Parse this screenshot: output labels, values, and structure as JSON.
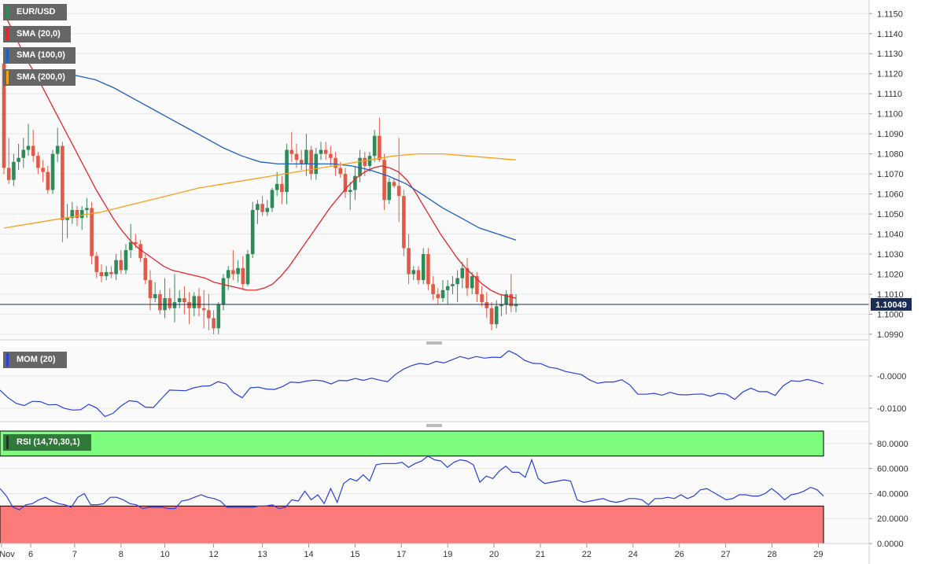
{
  "chart_data": [
    {
      "type": "candlestick",
      "title": "EUR/USD",
      "indicators": [
        {
          "name": "SMA (20,0)",
          "color": "#e8242b"
        },
        {
          "name": "SMA (100,0)",
          "color": "#1f5fbf"
        },
        {
          "name": "SMA (200,0)",
          "color": "#f5a21b"
        }
      ],
      "ylim": [
        1.0988,
        1.1156
      ],
      "yticks": [
        "1.1150",
        "1.1140",
        "1.1130",
        "1.1120",
        "1.1110",
        "1.1100",
        "1.1090",
        "1.1080",
        "1.1070",
        "1.1060",
        "1.1050",
        "1.1040",
        "1.1030",
        "1.1020",
        "1.1010",
        "1.1000",
        "1.0990"
      ],
      "last_price": "1.10049",
      "last_price_value": 1.10049,
      "up_color": "#2e8b57",
      "down_color": "#e05a47",
      "candles": [
        [
          1.1125,
          1.1128,
          1.107,
          1.1073
        ],
        [
          1.1073,
          1.1088,
          1.1065,
          1.1067
        ],
        [
          1.1067,
          1.108,
          1.1064,
          1.1076
        ],
        [
          1.1076,
          1.1085,
          1.1072,
          1.1078
        ],
        [
          1.1078,
          1.1088,
          1.1073,
          1.1082
        ],
        [
          1.1082,
          1.1095,
          1.1079,
          1.1084
        ],
        [
          1.1084,
          1.1092,
          1.1076,
          1.1079
        ],
        [
          1.1079,
          1.1081,
          1.107,
          1.1073
        ],
        [
          1.1073,
          1.1077,
          1.1066,
          1.1071
        ],
        [
          1.1071,
          1.1074,
          1.106,
          1.1062
        ],
        [
          1.1062,
          1.1082,
          1.106,
          1.108
        ],
        [
          1.108,
          1.1093,
          1.1076,
          1.1084
        ],
        [
          1.1084,
          1.1086,
          1.1036,
          1.1047
        ],
        [
          1.1047,
          1.1055,
          1.1038,
          1.1048
        ],
        [
          1.1048,
          1.1056,
          1.1045,
          1.1052
        ],
        [
          1.1052,
          1.1054,
          1.1044,
          1.1048
        ],
        [
          1.1048,
          1.1054,
          1.1042,
          1.1052
        ],
        [
          1.1052,
          1.1058,
          1.1048,
          1.1053
        ],
        [
          1.1053,
          1.1056,
          1.1025,
          1.1029
        ],
        [
          1.1029,
          1.1031,
          1.1018,
          1.1021
        ],
        [
          1.1021,
          1.1025,
          1.1016,
          1.1019
        ],
        [
          1.1019,
          1.1024,
          1.1017,
          1.1021
        ],
        [
          1.1021,
          1.1024,
          1.1018,
          1.102
        ],
        [
          1.102,
          1.103,
          1.1017,
          1.1027
        ],
        [
          1.1027,
          1.1032,
          1.102,
          1.1022
        ],
        [
          1.1022,
          1.1035,
          1.102,
          1.1032
        ],
        [
          1.1032,
          1.1045,
          1.1028,
          1.1036
        ],
        [
          1.1036,
          1.104,
          1.1033,
          1.1035
        ],
        [
          1.1035,
          1.1037,
          1.1026,
          1.1028
        ],
        [
          1.1028,
          1.103,
          1.1015,
          1.1017
        ],
        [
          1.1017,
          1.1022,
          1.1002,
          1.1008
        ],
        [
          1.1008,
          1.1016,
          1.1006,
          1.101
        ],
        [
          1.101,
          1.1012,
          1.1,
          1.1002
        ],
        [
          1.1002,
          1.1018,
          1.0998,
          1.1008
        ],
        [
          1.1008,
          1.1013,
          1.1002,
          1.1003
        ],
        [
          1.1003,
          1.102,
          1.0996,
          1.1006
        ],
        [
          1.1006,
          1.1012,
          1.1003,
          1.1008
        ],
        [
          1.1008,
          1.1014,
          1.1,
          1.1006
        ],
        [
          1.1006,
          1.1011,
          1.0995,
          1.1003
        ],
        [
          1.1003,
          1.1011,
          1.0999,
          1.1009
        ],
        [
          1.1009,
          1.1013,
          1.0999,
          1.1003
        ],
        [
          1.1003,
          1.1012,
          1.0993,
          1.1002
        ],
        [
          1.1002,
          1.101,
          1.0992,
          1.0998
        ],
        [
          1.0998,
          1.1002,
          1.099,
          1.0993
        ],
        [
          1.0993,
          1.1006,
          1.099,
          1.1005
        ],
        [
          1.1005,
          1.102,
          1.1002,
          1.1018
        ],
        [
          1.1018,
          1.1024,
          1.1012,
          1.1022
        ],
        [
          1.1022,
          1.1032,
          1.1017,
          1.102
        ],
        [
          1.102,
          1.1027,
          1.1016,
          1.1023
        ],
        [
          1.1023,
          1.1029,
          1.1012,
          1.1015
        ],
        [
          1.1015,
          1.1032,
          1.1014,
          1.103
        ],
        [
          1.103,
          1.1056,
          1.1028,
          1.1052
        ],
        [
          1.1052,
          1.1057,
          1.1045,
          1.1055
        ],
        [
          1.1055,
          1.1059,
          1.1049,
          1.1051
        ],
        [
          1.1051,
          1.1057,
          1.1049,
          1.1053
        ],
        [
          1.1053,
          1.1063,
          1.1051,
          1.1062
        ],
        [
          1.1062,
          1.1071,
          1.1059,
          1.1065
        ],
        [
          1.1065,
          1.1069,
          1.1055,
          1.1061
        ],
        [
          1.1061,
          1.1085,
          1.1055,
          1.1082
        ],
        [
          1.1082,
          1.1091,
          1.1076,
          1.108
        ],
        [
          1.108,
          1.1085,
          1.1073,
          1.1077
        ],
        [
          1.1077,
          1.1082,
          1.1072,
          1.1075
        ],
        [
          1.1075,
          1.109,
          1.1069,
          1.1082
        ],
        [
          1.1082,
          1.1084,
          1.1067,
          1.107
        ],
        [
          1.107,
          1.1083,
          1.1067,
          1.108
        ],
        [
          1.108,
          1.1086,
          1.1077,
          1.1082
        ],
        [
          1.1082,
          1.1086,
          1.1077,
          1.108
        ],
        [
          1.108,
          1.1084,
          1.1074,
          1.1078
        ],
        [
          1.1078,
          1.1081,
          1.1069,
          1.1073
        ],
        [
          1.1073,
          1.1076,
          1.1068,
          1.107
        ],
        [
          1.107,
          1.1073,
          1.1058,
          1.1061
        ],
        [
          1.1061,
          1.1066,
          1.1052,
          1.1062
        ],
        [
          1.1062,
          1.1074,
          1.1057,
          1.1069
        ],
        [
          1.1069,
          1.1082,
          1.1066,
          1.1078
        ],
        [
          1.1078,
          1.1081,
          1.1069,
          1.1074
        ],
        [
          1.1074,
          1.1081,
          1.1071,
          1.1079
        ],
        [
          1.1079,
          1.1092,
          1.1076,
          1.1089
        ],
        [
          1.1089,
          1.1098,
          1.1076,
          1.1077
        ],
        [
          1.1077,
          1.108,
          1.1052,
          1.1057
        ],
        [
          1.1057,
          1.1068,
          1.1055,
          1.1066
        ],
        [
          1.1066,
          1.1068,
          1.1063,
          1.1064
        ],
        [
          1.1064,
          1.1088,
          1.1046,
          1.1059
        ],
        [
          1.1059,
          1.1062,
          1.1029,
          1.1033
        ],
        [
          1.1033,
          1.104,
          1.1015,
          1.102
        ],
        [
          1.102,
          1.1024,
          1.1017,
          1.1022
        ],
        [
          1.1022,
          1.1024,
          1.1015,
          1.1017
        ],
        [
          1.1017,
          1.1033,
          1.1015,
          1.103
        ],
        [
          1.103,
          1.1033,
          1.1012,
          1.1015
        ],
        [
          1.1015,
          1.1019,
          1.1007,
          1.101
        ],
        [
          1.101,
          1.1013,
          1.1005,
          1.1008
        ],
        [
          1.1008,
          1.1017,
          1.1006,
          1.1012
        ],
        [
          1.1012,
          1.1017,
          1.1005,
          1.1014
        ],
        [
          1.1014,
          1.1019,
          1.101,
          1.1015
        ],
        [
          1.1015,
          1.1022,
          1.1006,
          1.1018
        ],
        [
          1.1018,
          1.1026,
          1.1013,
          1.1023
        ],
        [
          1.1023,
          1.1028,
          1.1009,
          1.1013
        ],
        [
          1.1013,
          1.1021,
          1.101,
          1.1019
        ],
        [
          1.1019,
          1.1021,
          1.1006,
          1.101
        ],
        [
          1.101,
          1.1014,
          1.1004,
          1.1006
        ],
        [
          1.1006,
          1.1011,
          1.0998,
          1.1003
        ],
        [
          1.1003,
          1.1006,
          1.0992,
          1.0995
        ],
        [
          1.0995,
          1.1007,
          1.0993,
          1.1004
        ],
        [
          1.1004,
          1.101,
          1.0999,
          1.1005
        ],
        [
          1.1005,
          1.1012,
          1.1,
          1.101
        ],
        [
          1.101,
          1.102,
          1.1001,
          1.1004
        ],
        [
          1.1004,
          1.101,
          1.1001,
          1.1005
        ]
      ],
      "sma20": [
        1.115,
        1.1142,
        1.1133,
        1.1125,
        1.1118,
        1.111,
        1.1102,
        1.1094,
        1.1086,
        1.1078,
        1.107,
        1.1062,
        1.1055,
        1.1048,
        1.1042,
        1.1037,
        1.1033,
        1.103,
        1.1027,
        1.1024,
        1.1022,
        1.1021,
        1.102,
        1.1019,
        1.1018,
        1.1016,
        1.1015,
        1.1014,
        1.1013,
        1.1012,
        1.1012,
        1.1013,
        1.1015,
        1.1019,
        1.1024,
        1.103,
        1.1036,
        1.1042,
        1.1048,
        1.1054,
        1.1059,
        1.1064,
        1.1068,
        1.1071,
        1.1073,
        1.1074,
        1.1073,
        1.1071,
        1.1067,
        1.1061,
        1.1054,
        1.1047,
        1.104,
        1.1034,
        1.1028,
        1.1023,
        1.1019,
        1.1015,
        1.1012,
        1.101,
        1.1009,
        1.1008
      ],
      "sma100": [
        1.1114,
        1.1117,
        1.1119,
        1.112,
        1.1119,
        1.1117,
        1.1113,
        1.1108,
        1.1103,
        1.1098,
        1.1093,
        1.1088,
        1.1083,
        1.1079,
        1.1076,
        1.1075,
        1.1075,
        1.1075,
        1.1075,
        1.1074,
        1.1072,
        1.1069,
        1.1065,
        1.1059,
        1.1053,
        1.1048,
        1.1043,
        1.104,
        1.1037
      ],
      "sma200": [
        1.1043,
        1.1045,
        1.1047,
        1.1049,
        1.1051,
        1.1054,
        1.1057,
        1.106,
        1.1063,
        1.1065,
        1.1067,
        1.1069,
        1.1071,
        1.1073,
        1.1075,
        1.1077,
        1.1079,
        1.108,
        1.108,
        1.1079,
        1.1078,
        1.1077
      ]
    },
    {
      "type": "line",
      "title": "MOM (20)",
      "color": "#2a3fdc",
      "ylim": [
        -0.0137,
        0.0085
      ],
      "yticks": [
        "-0.0000",
        "-0.0100"
      ],
      "values": [
        -0.0044,
        -0.0068,
        -0.0085,
        -0.0092,
        -0.0079,
        -0.008,
        -0.009,
        -0.0089,
        -0.0101,
        -0.0106,
        -0.0105,
        -0.0088,
        -0.01,
        -0.0126,
        -0.0116,
        -0.0093,
        -0.0077,
        -0.008,
        -0.0097,
        -0.0098,
        -0.0071,
        -0.0044,
        -0.0045,
        -0.0046,
        -0.0037,
        -0.0032,
        -0.0031,
        -0.0018,
        -0.0025,
        -0.0053,
        -0.0068,
        -0.0037,
        -0.0035,
        -0.0041,
        -0.0042,
        -0.0033,
        -0.0019,
        -0.0021,
        -0.0016,
        -0.0013,
        -0.0016,
        -0.0025,
        -0.0014,
        -0.0015,
        -0.0008,
        -0.0014,
        -0.0007,
        -0.0013,
        -0.0018,
        0.0005,
        0.0021,
        0.0032,
        0.0039,
        0.0035,
        0.0045,
        0.004,
        0.005,
        0.006,
        0.0053,
        0.006,
        0.0055,
        0.0058,
        0.0057,
        0.0078,
        0.0066,
        0.0048,
        0.0039,
        0.0038,
        0.0027,
        0.0023,
        0.0014,
        0.0009,
        0.0004,
        -0.0012,
        -0.0023,
        -0.0019,
        -0.0019,
        -0.0012,
        -0.0028,
        -0.0057,
        -0.0057,
        -0.0054,
        -0.006,
        -0.0051,
        -0.0058,
        -0.0059,
        -0.0057,
        -0.0056,
        -0.0063,
        -0.0054,
        -0.0057,
        -0.0073,
        -0.005,
        -0.0038,
        -0.0049,
        -0.0049,
        -0.0061,
        -0.0031,
        -0.0015,
        -0.0017,
        -0.0011,
        -0.0017,
        -0.0025
      ]
    },
    {
      "type": "line",
      "title": "RSI (14,70,30,1)",
      "color": "#2a3fdc",
      "ylim": [
        0,
        90
      ],
      "yticks": [
        "80.0000",
        "60.0000",
        "40.0000",
        "20.0000",
        "0.0000"
      ],
      "overbought": 70,
      "oversold": 30,
      "values": [
        44,
        38,
        29,
        27,
        31,
        32,
        35,
        37,
        34,
        32,
        31,
        29,
        37,
        40,
        31,
        31,
        32,
        37,
        37,
        35,
        32,
        31,
        28,
        29,
        29,
        29,
        28,
        28,
        34,
        35,
        37,
        39,
        37,
        36,
        34,
        29,
        29,
        29,
        29,
        29,
        30,
        30,
        31,
        28,
        29,
        35,
        34,
        42,
        35,
        39,
        32,
        44,
        33,
        48,
        52,
        50,
        55,
        50,
        63,
        64,
        64,
        64,
        65,
        61,
        64,
        66,
        70,
        67,
        66,
        61,
        65,
        67,
        66,
        63,
        49,
        54,
        52,
        58,
        62,
        57,
        57,
        53,
        67,
        52,
        48,
        49,
        50,
        51,
        50,
        35,
        33,
        34,
        35,
        36,
        34,
        33,
        34,
        36,
        36,
        35,
        31,
        36,
        36,
        37,
        36,
        39,
        36,
        38,
        43,
        44,
        41,
        38,
        35,
        36,
        39,
        39,
        38,
        38,
        40,
        44,
        40,
        35,
        39,
        40,
        42,
        45,
        43,
        38
      ]
    }
  ],
  "x_axis": {
    "labels": [
      {
        "text": "Nov",
        "bar": -0.5
      },
      {
        "text": "6",
        "bar": 5.5
      },
      {
        "text": "7",
        "bar": 14.5
      },
      {
        "text": "8",
        "bar": 24
      },
      {
        "text": "10",
        "bar": 33
      },
      {
        "text": "12",
        "bar": 43
      },
      {
        "text": "13",
        "bar": 53
      },
      {
        "text": "14",
        "bar": 62.5
      },
      {
        "text": "15",
        "bar": 72
      },
      {
        "text": "17",
        "bar": 81.5
      },
      {
        "text": "19",
        "bar": 91
      },
      {
        "text": "20",
        "bar": 100.5
      },
      {
        "text": "21",
        "bar": 110
      },
      {
        "text": "22",
        "bar": 119.5
      },
      {
        "text": "24",
        "bar": 129
      },
      {
        "text": "26",
        "bar": 138.5
      },
      {
        "text": "27",
        "bar": 148
      },
      {
        "text": "28",
        "bar": 157.5
      },
      {
        "text": "29",
        "bar": 167
      }
    ]
  }
}
